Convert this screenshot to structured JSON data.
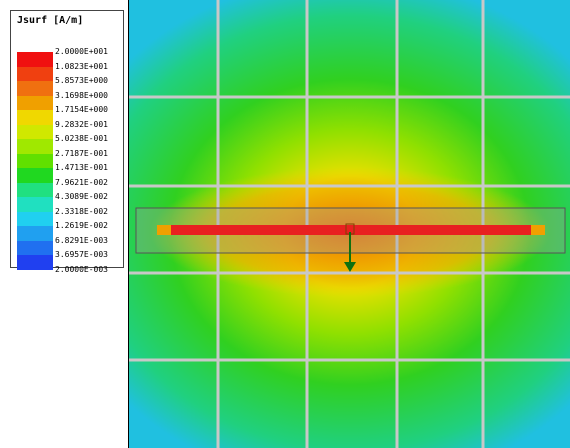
{
  "legend": {
    "title": "Jsurf [A/m]",
    "labels": [
      "2.0000E+001",
      "1.0823E+001",
      "5.8573E+000",
      "3.1698E+000",
      "1.7154E+000",
      "9.2832E-001",
      "5.0238E-001",
      "2.7187E-001",
      "1.4713E-001",
      "7.9621E-002",
      "4.3089E-002",
      "2.3318E-002",
      "1.2619E-002",
      "6.8291E-003",
      "3.6957E-003",
      "2.0000E-003"
    ]
  }
}
